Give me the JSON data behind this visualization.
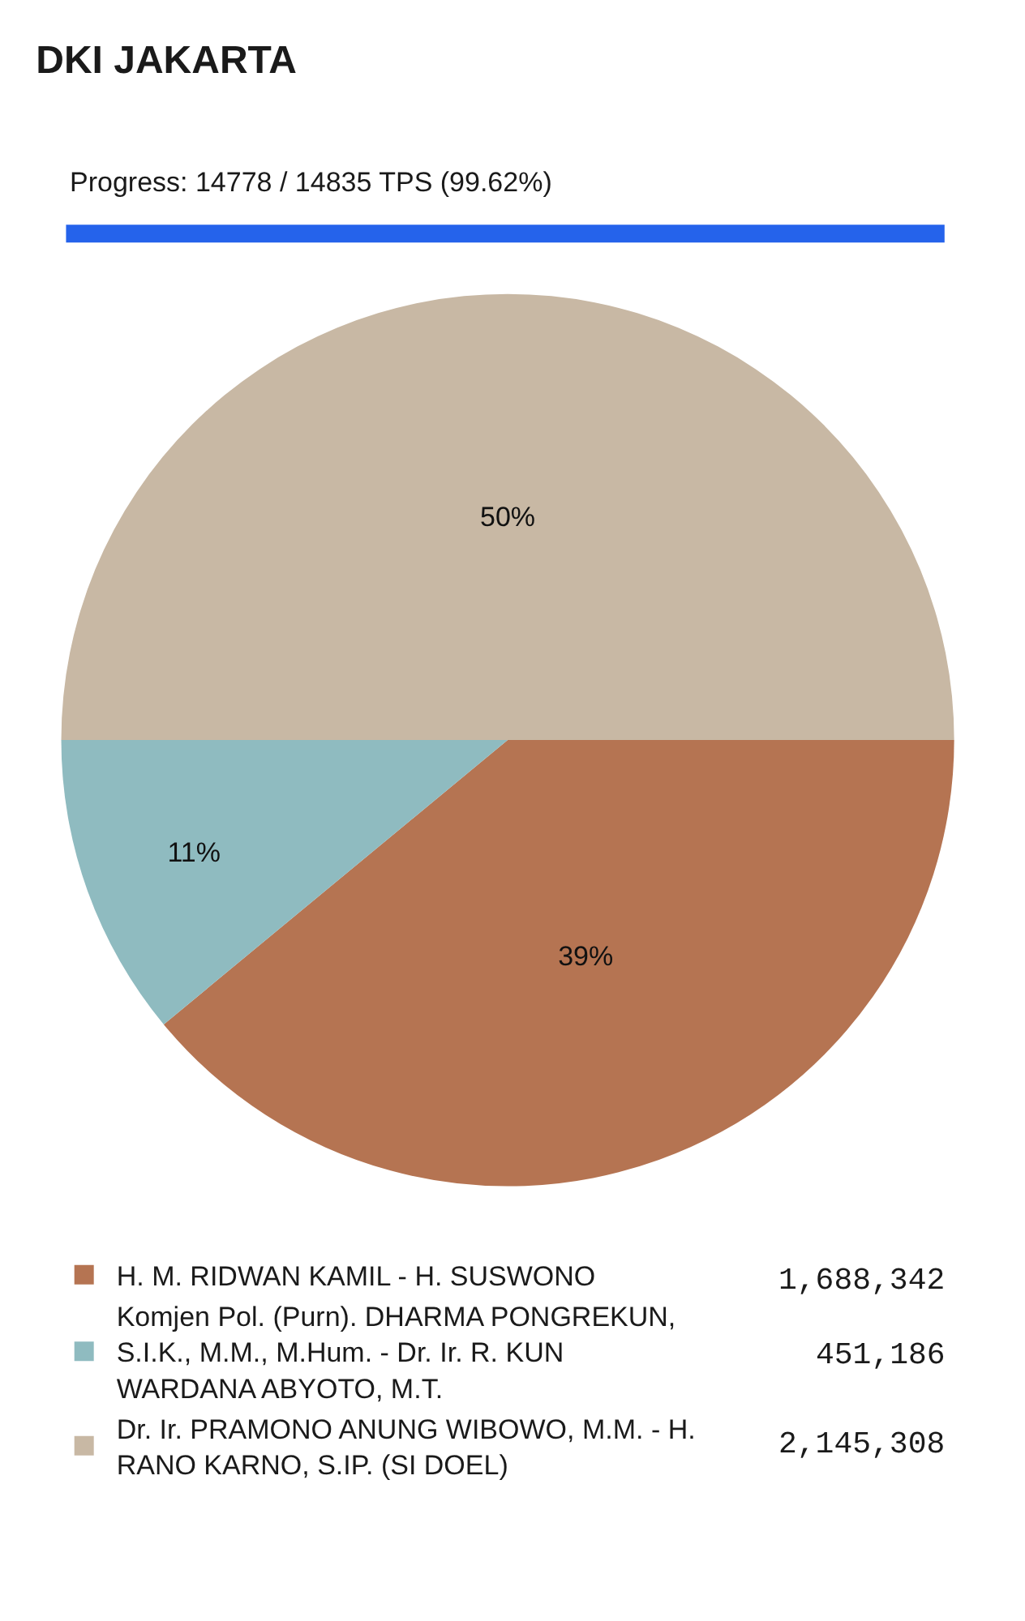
{
  "chart_data": {
    "type": "pie",
    "title": "DKI JAKARTA",
    "subtitle": "Progress: 14778 / 14835 TPS (99.62%)",
    "categories": [
      "H. M. RIDWAN KAMIL - H. SUSWONO",
      "Komjen Pol. (Purn). DHARMA PONGREKUN, S.I.K., M.M., M.Hum. - Dr. Ir. R. KUN WARDANA ABYOTO, M.T.",
      "Dr. Ir. PRAMONO ANUNG WIBOWO, M.M. - H. RANO KARNO, S.IP. (SI DOEL)"
    ],
    "values": [
      39,
      11,
      50
    ],
    "annotations": [
      "1,688,342",
      "451,186",
      "2,145,308"
    ],
    "value_labels": [
      "39%",
      "11%",
      "50%"
    ],
    "colors": [
      "#b57452",
      "#8fbbc0",
      "#c8b8a4"
    ],
    "legend": "bottom"
  }
}
